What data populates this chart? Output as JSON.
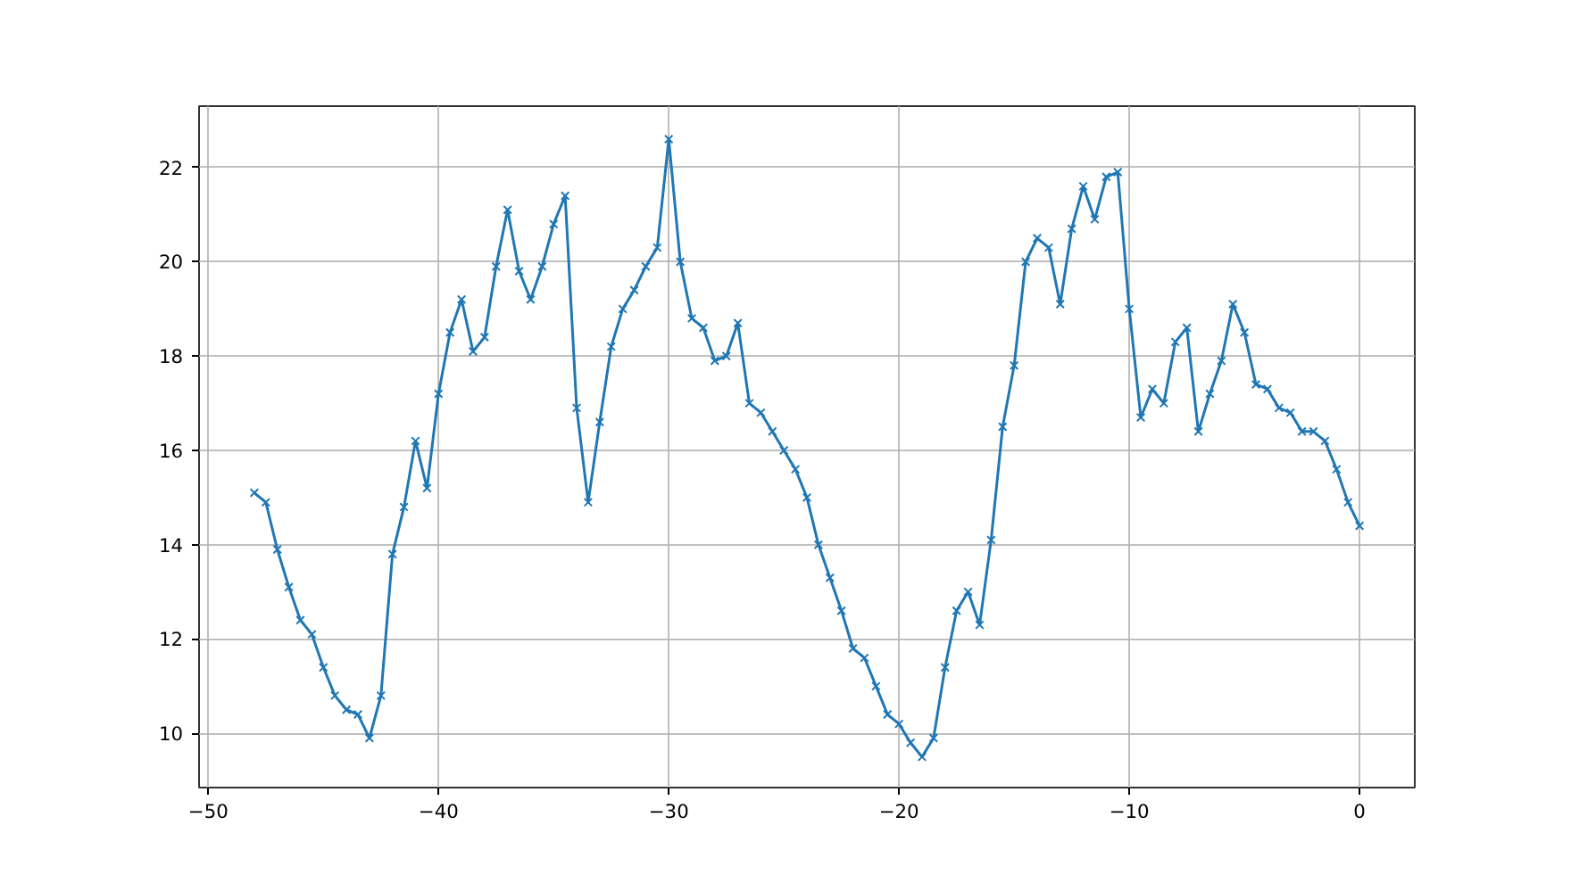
{
  "chart_data": {
    "type": "line",
    "marker": "cross",
    "grid": true,
    "x": [
      -48,
      -47.5,
      -47,
      -46.5,
      -46,
      -45.5,
      -45,
      -44.5,
      -44,
      -43.5,
      -43,
      -42.5,
      -42,
      -41.5,
      -41,
      -40.5,
      -40,
      -39.5,
      -39,
      -38.5,
      -38,
      -37.5,
      -37,
      -36.5,
      -36,
      -35.5,
      -35,
      -34.5,
      -34,
      -33.5,
      -33,
      -32.5,
      -32,
      -31.5,
      -31,
      -30.5,
      -30,
      -29.5,
      -29,
      -28.5,
      -28,
      -27.5,
      -27,
      -26.5,
      -26,
      -25.5,
      -25,
      -24.5,
      -24,
      -23.5,
      -23,
      -22.5,
      -22,
      -21.5,
      -21,
      -20.5,
      -20,
      -19.5,
      -19,
      -18.5,
      -18,
      -17.5,
      -17,
      -16.5,
      -16,
      -15.5,
      -15,
      -14.5,
      -14,
      -13.5,
      -13,
      -12.5,
      -12,
      -11.5,
      -11,
      -10.5,
      -10,
      -9.5,
      -9,
      -8.5,
      -8,
      -7.5,
      -7,
      -6.5,
      -6,
      -5.5,
      -5,
      -4.5,
      -4,
      -3.5,
      -3,
      -2.5,
      -2,
      -1.5,
      -1,
      -0.5,
      0
    ],
    "series": [
      {
        "color": "#1f77b4",
        "values": [
          15.1,
          14.9,
          13.9,
          13.1,
          12.4,
          12.1,
          11.4,
          10.8,
          10.5,
          10.4,
          9.9,
          10.8,
          13.8,
          14.8,
          16.2,
          15.2,
          17.2,
          18.5,
          19.2,
          18.1,
          18.4,
          19.9,
          21.1,
          19.8,
          19.2,
          19.9,
          20.8,
          21.4,
          16.9,
          14.9,
          16.6,
          18.2,
          19.0,
          19.4,
          19.9,
          20.3,
          22.6,
          20.0,
          18.8,
          18.6,
          17.9,
          18.0,
          18.7,
          17.0,
          16.8,
          16.4,
          16.0,
          15.6,
          15.0,
          14.0,
          13.3,
          12.6,
          11.8,
          11.6,
          11.0,
          10.4,
          10.2,
          9.8,
          9.5,
          9.9,
          11.4,
          12.6,
          13.0,
          12.3,
          14.1,
          16.5,
          17.8,
          20.0,
          20.5,
          20.3,
          19.1,
          20.7,
          21.6,
          20.9,
          21.8,
          21.9,
          19.0,
          16.7,
          17.3,
          17.0,
          18.3,
          18.6,
          16.4,
          17.2,
          17.9,
          19.1,
          18.5,
          17.4,
          17.3,
          16.9,
          16.8,
          16.4,
          16.4,
          16.2,
          15.6,
          14.9,
          14.4
        ]
      }
    ],
    "xlim": [
      -50.4,
      2.4
    ],
    "ylim": [
      8.85,
      23.3
    ],
    "xticks": [
      {
        "value": -50,
        "label": "−50"
      },
      {
        "value": -40,
        "label": "−40"
      },
      {
        "value": -30,
        "label": "−30"
      },
      {
        "value": -20,
        "label": "−20"
      },
      {
        "value": -10,
        "label": "−10"
      },
      0
    ],
    "yticks": [
      10,
      12,
      14,
      16,
      18,
      20,
      22
    ]
  }
}
